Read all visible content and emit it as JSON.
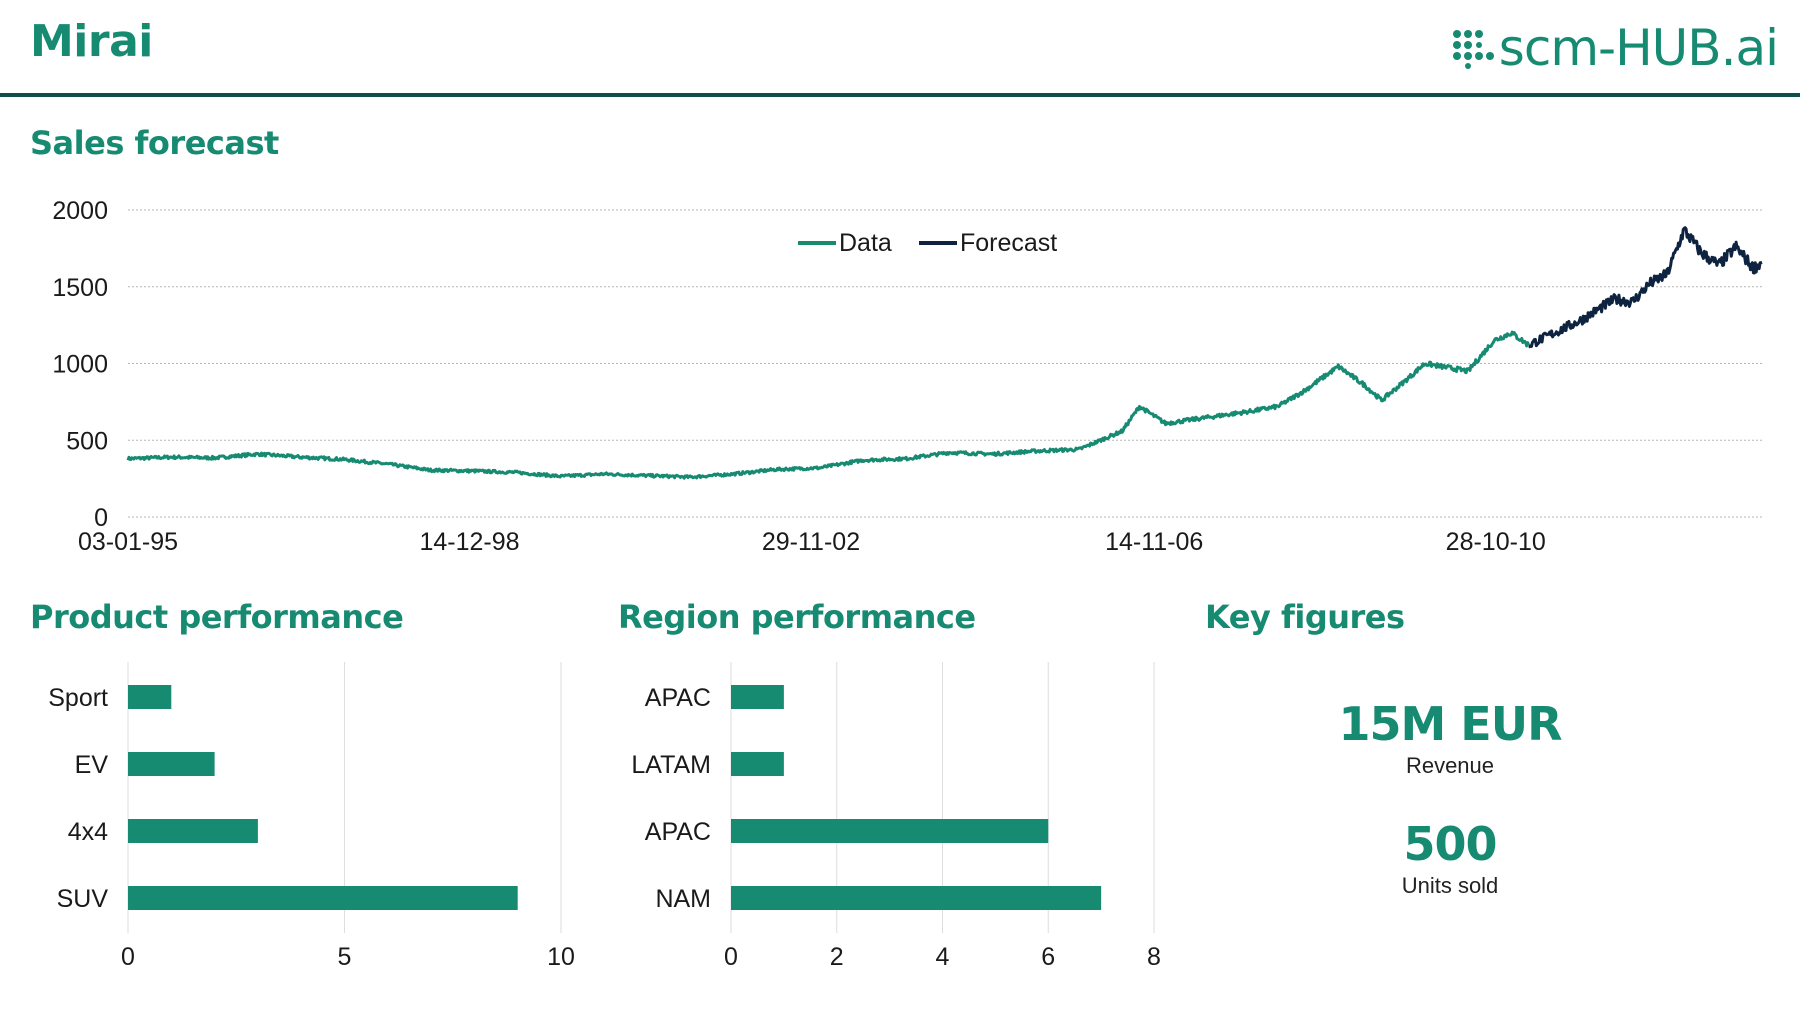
{
  "header": {
    "title": "Mirai",
    "logo_text": "scm-HUB.ai",
    "brand_color": "#178a72",
    "rule_color": "#0f4f47"
  },
  "sections": {
    "sales_title": "Sales forecast",
    "product_title": "Product performance",
    "region_title": "Region performance",
    "kpi_title": "Key figures"
  },
  "kpis": [
    {
      "value": "15M EUR",
      "label": "Revenue"
    },
    {
      "value": "500",
      "label": "Units sold"
    }
  ],
  "chart_data": [
    {
      "type": "line",
      "title": "Sales forecast",
      "ylim": [
        0,
        2000
      ],
      "yticks": [
        0,
        500,
        1000,
        1500,
        2000
      ],
      "xticks": [
        "03-01-95",
        "14-12-98",
        "29-11-02",
        "14-11-06",
        "28-10-10"
      ],
      "grid": true,
      "legend_position": "top-center",
      "series": [
        {
          "name": "Data",
          "color": "#178a72",
          "x": [
            1995.0,
            1995.5,
            1996.0,
            1996.5,
            1997.0,
            1997.5,
            1998.0,
            1998.5,
            1999.0,
            1999.5,
            2000.0,
            2000.5,
            2001.0,
            2001.5,
            2002.0,
            2002.5,
            2003.0,
            2003.5,
            2004.0,
            2004.5,
            2005.0,
            2005.5,
            2006.0,
            2006.5,
            2006.7,
            2007.0,
            2007.5,
            2008.0,
            2008.3,
            2008.6,
            2009.0,
            2009.3,
            2009.5,
            2009.8,
            2010.0,
            2010.5,
            2010.8,
            2011.0,
            2011.2
          ],
          "y": [
            380,
            390,
            385,
            410,
            390,
            375,
            345,
            305,
            300,
            290,
            265,
            280,
            270,
            260,
            280,
            310,
            320,
            370,
            380,
            420,
            410,
            430,
            440,
            560,
            720,
            610,
            650,
            690,
            720,
            820,
            980,
            860,
            760,
            900,
            1000,
            950,
            1150,
            1200,
            1120
          ]
        },
        {
          "name": "Forecast",
          "color": "#0e2340",
          "x": [
            2011.2,
            2011.5,
            2011.8,
            2012.0,
            2012.2,
            2012.4,
            2012.6,
            2012.8,
            2013.0,
            2013.2,
            2013.4,
            2013.6,
            2013.8,
            2013.9
          ],
          "y": [
            1120,
            1200,
            1280,
            1350,
            1420,
            1400,
            1520,
            1580,
            1870,
            1720,
            1640,
            1760,
            1620,
            1660
          ]
        }
      ]
    },
    {
      "type": "bar",
      "orientation": "horizontal",
      "title": "Product performance",
      "categories": [
        "Sport",
        "EV",
        "4x4",
        "SUV"
      ],
      "values": [
        1,
        2,
        3,
        9
      ],
      "xlim": [
        0,
        10
      ],
      "xticks": [
        0,
        5,
        10
      ],
      "color": "#178a72"
    },
    {
      "type": "bar",
      "orientation": "horizontal",
      "title": "Region performance",
      "categories": [
        "APAC",
        "LATAM",
        "APAC",
        "NAM"
      ],
      "values": [
        1,
        1,
        6,
        7
      ],
      "xlim": [
        0,
        8
      ],
      "xticks": [
        0,
        2,
        4,
        6,
        8
      ],
      "color": "#178a72"
    }
  ]
}
